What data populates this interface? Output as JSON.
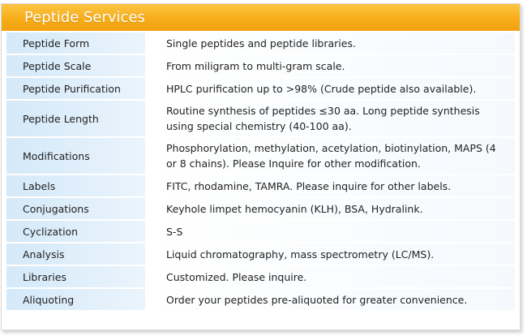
{
  "title": "Peptide Services",
  "rows": [
    {
      "label": "Peptide Form",
      "value": "Single peptides and peptide libraries."
    },
    {
      "label": "Peptide Scale",
      "value": "From miligram to multi-gram scale."
    },
    {
      "label": "Peptide Purification",
      "value": "HPLC purification up to >98% (Crude peptide also available)."
    },
    {
      "label": "Peptide Length",
      "value": "Routine synthesis of peptides ≤30 aa. Long peptide synthesis using special chemistry (40-100 aa)."
    },
    {
      "label": "Modifications",
      "value": "Phosphorylation, methylation, acetylation, biotinylation, MAPS (4 or 8 chains). Please Inquire for other modification."
    },
    {
      "label": "Labels",
      "value": "FITC, rhodamine, TAMRA. Please inquire for other labels."
    },
    {
      "label": "Conjugations",
      "value": "Keyhole limpet hemocyanin (KLH), BSA, Hydralink."
    },
    {
      "label": "Cyclization",
      "value": "S-S"
    },
    {
      "label": "Analysis",
      "value": "Liquid chromatography, mass spectrometry (LC/MS)."
    },
    {
      "label": "Libraries",
      "value": "Customized. Please inquire."
    },
    {
      "label": "Aliquoting",
      "value": "Order your peptides pre-aliquoted for greater convenience."
    }
  ]
}
